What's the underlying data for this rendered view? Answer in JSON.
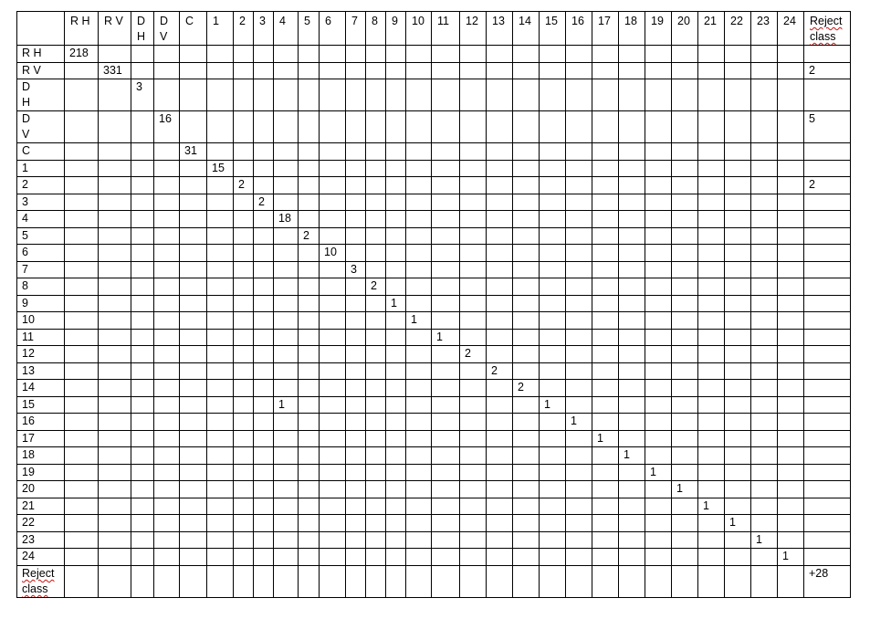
{
  "col_headers": [
    "R H",
    "R V",
    "D H",
    "D V",
    "C",
    "1",
    "2",
    "3",
    "4",
    "5",
    "6",
    "7",
    "8",
    "9",
    "10",
    "11",
    "12",
    "13",
    "14",
    "15",
    "16",
    "17",
    "18",
    "19",
    "20",
    "21",
    "22",
    "23",
    "24",
    "Reject class"
  ],
  "row_labels": [
    "R H",
    "R V",
    "D H",
    "D V",
    "C",
    "1",
    "2",
    "3",
    "4",
    "5",
    "6",
    "7",
    "8",
    "9",
    "10",
    "11",
    "12",
    "13",
    "14",
    "15",
    "16",
    "17",
    "18",
    "19",
    "20",
    "21",
    "22",
    "23",
    "24",
    "Reject class"
  ],
  "cells": [
    [
      "218",
      "",
      "",
      "",
      "",
      "",
      "",
      "",
      "",
      "",
      "",
      "",
      "",
      "",
      "",
      "",
      "",
      "",
      "",
      "",
      "",
      "",
      "",
      "",
      "",
      "",
      "",
      "",
      "",
      ""
    ],
    [
      "",
      "331",
      "",
      "",
      "",
      "",
      "",
      "",
      "",
      "",
      "",
      "",
      "",
      "",
      "",
      "",
      "",
      "",
      "",
      "",
      "",
      "",
      "",
      "",
      "",
      "",
      "",
      "",
      "",
      "2"
    ],
    [
      "",
      "",
      "3",
      "",
      "",
      "",
      "",
      "",
      "",
      "",
      "",
      "",
      "",
      "",
      "",
      "",
      "",
      "",
      "",
      "",
      "",
      "",
      "",
      "",
      "",
      "",
      "",
      "",
      "",
      ""
    ],
    [
      "",
      "",
      "",
      "16",
      "",
      "",
      "",
      "",
      "",
      "",
      "",
      "",
      "",
      "",
      "",
      "",
      "",
      "",
      "",
      "",
      "",
      "",
      "",
      "",
      "",
      "",
      "",
      "",
      "",
      "5"
    ],
    [
      "",
      "",
      "",
      "",
      "31",
      "",
      "",
      "",
      "",
      "",
      "",
      "",
      "",
      "",
      "",
      "",
      "",
      "",
      "",
      "",
      "",
      "",
      "",
      "",
      "",
      "",
      "",
      "",
      "",
      ""
    ],
    [
      "",
      "",
      "",
      "",
      "",
      "15",
      "",
      "",
      "",
      "",
      "",
      "",
      "",
      "",
      "",
      "",
      "",
      "",
      "",
      "",
      "",
      "",
      "",
      "",
      "",
      "",
      "",
      "",
      "",
      ""
    ],
    [
      "",
      "",
      "",
      "",
      "",
      "",
      "2",
      "",
      "",
      "",
      "",
      "",
      "",
      "",
      "",
      "",
      "",
      "",
      "",
      "",
      "",
      "",
      "",
      "",
      "",
      "",
      "",
      "",
      "",
      "2"
    ],
    [
      "",
      "",
      "",
      "",
      "",
      "",
      "",
      "2",
      "",
      "",
      "",
      "",
      "",
      "",
      "",
      "",
      "",
      "",
      "",
      "",
      "",
      "",
      "",
      "",
      "",
      "",
      "",
      "",
      "",
      ""
    ],
    [
      "",
      "",
      "",
      "",
      "",
      "",
      "",
      "",
      "18",
      "",
      "",
      "",
      "",
      "",
      "",
      "",
      "",
      "",
      "",
      "",
      "",
      "",
      "",
      "",
      "",
      "",
      "",
      "",
      "",
      ""
    ],
    [
      "",
      "",
      "",
      "",
      "",
      "",
      "",
      "",
      "",
      "2",
      "",
      "",
      "",
      "",
      "",
      "",
      "",
      "",
      "",
      "",
      "",
      "",
      "",
      "",
      "",
      "",
      "",
      "",
      "",
      ""
    ],
    [
      "",
      "",
      "",
      "",
      "",
      "",
      "",
      "",
      "",
      "",
      "10",
      "",
      "",
      "",
      "",
      "",
      "",
      "",
      "",
      "",
      "",
      "",
      "",
      "",
      "",
      "",
      "",
      "",
      "",
      ""
    ],
    [
      "",
      "",
      "",
      "",
      "",
      "",
      "",
      "",
      "",
      "",
      "",
      "3",
      "",
      "",
      "",
      "",
      "",
      "",
      "",
      "",
      "",
      "",
      "",
      "",
      "",
      "",
      "",
      "",
      "",
      ""
    ],
    [
      "",
      "",
      "",
      "",
      "",
      "",
      "",
      "",
      "",
      "",
      "",
      "",
      "2",
      "",
      "",
      "",
      "",
      "",
      "",
      "",
      "",
      "",
      "",
      "",
      "",
      "",
      "",
      "",
      "",
      ""
    ],
    [
      "",
      "",
      "",
      "",
      "",
      "",
      "",
      "",
      "",
      "",
      "",
      "",
      "",
      "1",
      "",
      "",
      "",
      "",
      "",
      "",
      "",
      "",
      "",
      "",
      "",
      "",
      "",
      "",
      "",
      ""
    ],
    [
      "",
      "",
      "",
      "",
      "",
      "",
      "",
      "",
      "",
      "",
      "",
      "",
      "",
      "",
      "1",
      "",
      "",
      "",
      "",
      "",
      "",
      "",
      "",
      "",
      "",
      "",
      "",
      "",
      "",
      ""
    ],
    [
      "",
      "",
      "",
      "",
      "",
      "",
      "",
      "",
      "",
      "",
      "",
      "",
      "",
      "",
      "",
      "1",
      "",
      "",
      "",
      "",
      "",
      "",
      "",
      "",
      "",
      "",
      "",
      "",
      "",
      ""
    ],
    [
      "",
      "",
      "",
      "",
      "",
      "",
      "",
      "",
      "",
      "",
      "",
      "",
      "",
      "",
      "",
      "",
      "2",
      "",
      "",
      "",
      "",
      "",
      "",
      "",
      "",
      "",
      "",
      "",
      "",
      ""
    ],
    [
      "",
      "",
      "",
      "",
      "",
      "",
      "",
      "",
      "",
      "",
      "",
      "",
      "",
      "",
      "",
      "",
      "",
      "2",
      "",
      "",
      "",
      "",
      "",
      "",
      "",
      "",
      "",
      "",
      "",
      ""
    ],
    [
      "",
      "",
      "",
      "",
      "",
      "",
      "",
      "",
      "",
      "",
      "",
      "",
      "",
      "",
      "",
      "",
      "",
      "",
      "2",
      "",
      "",
      "",
      "",
      "",
      "",
      "",
      "",
      "",
      "",
      ""
    ],
    [
      "",
      "",
      "",
      "",
      "",
      "",
      "",
      "",
      "1",
      "",
      "",
      "",
      "",
      "",
      "",
      "",
      "",
      "",
      "",
      "1",
      "",
      "",
      "",
      "",
      "",
      "",
      "",
      "",
      "",
      ""
    ],
    [
      "",
      "",
      "",
      "",
      "",
      "",
      "",
      "",
      "",
      "",
      "",
      "",
      "",
      "",
      "",
      "",
      "",
      "",
      "",
      "",
      "1",
      "",
      "",
      "",
      "",
      "",
      "",
      "",
      "",
      ""
    ],
    [
      "",
      "",
      "",
      "",
      "",
      "",
      "",
      "",
      "",
      "",
      "",
      "",
      "",
      "",
      "",
      "",
      "",
      "",
      "",
      "",
      "",
      "1",
      "",
      "",
      "",
      "",
      "",
      "",
      "",
      ""
    ],
    [
      "",
      "",
      "",
      "",
      "",
      "",
      "",
      "",
      "",
      "",
      "",
      "",
      "",
      "",
      "",
      "",
      "",
      "",
      "",
      "",
      "",
      "",
      "1",
      "",
      "",
      "",
      "",
      "",
      "",
      ""
    ],
    [
      "",
      "",
      "",
      "",
      "",
      "",
      "",
      "",
      "",
      "",
      "",
      "",
      "",
      "",
      "",
      "",
      "",
      "",
      "",
      "",
      "",
      "",
      "",
      "1",
      "",
      "",
      "",
      "",
      "",
      ""
    ],
    [
      "",
      "",
      "",
      "",
      "",
      "",
      "",
      "",
      "",
      "",
      "",
      "",
      "",
      "",
      "",
      "",
      "",
      "",
      "",
      "",
      "",
      "",
      "",
      "",
      "1",
      "",
      "",
      "",
      "",
      ""
    ],
    [
      "",
      "",
      "",
      "",
      "",
      "",
      "",
      "",
      "",
      "",
      "",
      "",
      "",
      "",
      "",
      "",
      "",
      "",
      "",
      "",
      "",
      "",
      "",
      "",
      "",
      "1",
      "",
      "",
      "",
      ""
    ],
    [
      "",
      "",
      "",
      "",
      "",
      "",
      "",
      "",
      "",
      "",
      "",
      "",
      "",
      "",
      "",
      "",
      "",
      "",
      "",
      "",
      "",
      "",
      "",
      "",
      "",
      "",
      "1",
      "",
      "",
      ""
    ],
    [
      "",
      "",
      "",
      "",
      "",
      "",
      "",
      "",
      "",
      "",
      "",
      "",
      "",
      "",
      "",
      "",
      "",
      "",
      "",
      "",
      "",
      "",
      "",
      "",
      "",
      "",
      "",
      "1",
      "",
      ""
    ],
    [
      "",
      "",
      "",
      "",
      "",
      "",
      "",
      "",
      "",
      "",
      "",
      "",
      "",
      "",
      "",
      "",
      "",
      "",
      "",
      "",
      "",
      "",
      "",
      "",
      "",
      "",
      "",
      "",
      "1",
      ""
    ],
    [
      "",
      "",
      "",
      "",
      "",
      "",
      "",
      "",
      "",
      "",
      "",
      "",
      "",
      "",
      "",
      "",
      "",
      "",
      "",
      "",
      "",
      "",
      "",
      "",
      "",
      "",
      "",
      "",
      "",
      "+28"
    ]
  ]
}
